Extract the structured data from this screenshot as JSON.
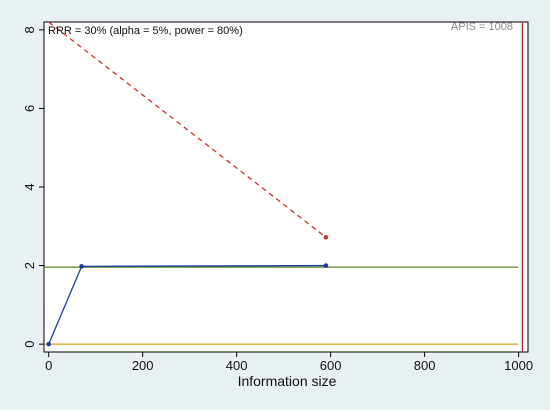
{
  "chart_data": {
    "type": "line",
    "xlabel": "Information size",
    "ylabel": "",
    "xlim": [
      -10,
      1020
    ],
    "ylim": [
      -0.2,
      8.2
    ],
    "xticks": [
      0,
      200,
      400,
      600,
      800,
      1000
    ],
    "xtick_labels": [
      "0",
      "200",
      "400",
      "600",
      "800",
      "1000"
    ],
    "yticks": [
      0,
      2,
      4,
      6,
      8
    ],
    "ytick_labels": [
      "0",
      "2",
      "4",
      "6",
      "8"
    ],
    "grid": false,
    "annotations": {
      "rrr_text": "RRR = 30% (alpha = 5%, power = 80%)",
      "apis_text": "APIS = 1008"
    },
    "series": [
      {
        "key": "cumulative_z",
        "x": [
          0,
          70,
          590
        ],
        "y": [
          0,
          1.98,
          2.0
        ],
        "color": "#1f3f9a",
        "style": "solid",
        "markers": true
      },
      {
        "key": "monitoring_boundary",
        "x": [
          0,
          590
        ],
        "y": [
          8.2,
          2.72
        ],
        "color": "#c0392b",
        "style": "dashed",
        "markers": true
      }
    ],
    "reference_lines": [
      {
        "key": "conventional_boundary",
        "orientation": "horizontal",
        "value": 1.96,
        "color": "#5a8a2a"
      },
      {
        "key": "zero_line",
        "orientation": "horizontal",
        "value": 0,
        "color": "#d4a017"
      },
      {
        "key": "apis_line",
        "orientation": "vertical",
        "value": 1008,
        "color": "#a83232"
      }
    ]
  }
}
